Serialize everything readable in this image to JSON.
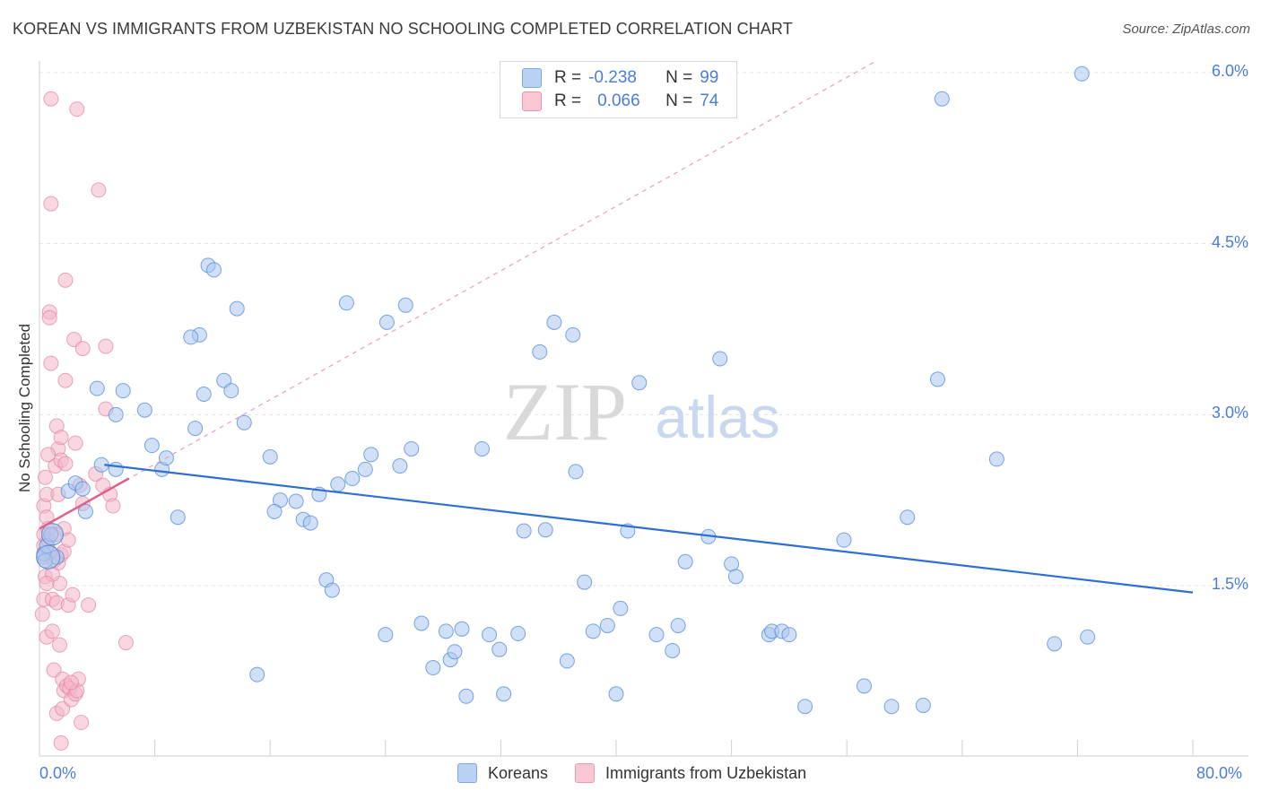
{
  "header": {
    "title": "KOREAN VS IMMIGRANTS FROM UZBEKISTAN NO SCHOOLING COMPLETED CORRELATION CHART",
    "source": "Source: ZipAtlas.com"
  },
  "watermark": {
    "zip": "ZIP",
    "atlas": "atlas"
  },
  "legend": {
    "korean": {
      "r_label": "R =",
      "r_value": "-0.238",
      "n_label": "N =",
      "n_value": "99",
      "color": "#a9c7f0"
    },
    "uzbek": {
      "r_label": "R =",
      "r_value": "0.066",
      "n_label": "N =",
      "n_value": "74",
      "color": "#f4b6c8"
    }
  },
  "bottom_legend": {
    "korean": "Koreans",
    "uzbek": "Immigrants from Uzbekistan"
  },
  "chart_data": {
    "type": "scatter",
    "title": "KOREAN VS IMMIGRANTS FROM UZBEKISTAN NO SCHOOLING COMPLETED CORRELATION CHART",
    "xlabel": "",
    "ylabel": "No Schooling Completed",
    "xlim": [
      0,
      80
    ],
    "ylim": [
      0,
      6.2
    ],
    "x_tick_labels": {
      "min": "0.0%",
      "max": "80.0%"
    },
    "y_ticks": [
      {
        "value": 1.5,
        "label": "1.5%"
      },
      {
        "value": 3.0,
        "label": "3.0%"
      },
      {
        "value": 4.5,
        "label": "4.5%"
      },
      {
        "value": 6.0,
        "label": "6.0%"
      }
    ],
    "series": [
      {
        "name": "Koreans",
        "color": "#5a8fd8",
        "fill": "#a9c7f0",
        "trend": {
          "x": [
            4.5,
            80
          ],
          "y": [
            2.56,
            1.44
          ],
          "color": "#2f6fd0"
        },
        "points": [
          [
            0.3,
            1.78
          ],
          [
            0.5,
            1.85
          ],
          [
            0.8,
            1.95
          ],
          [
            1.2,
            1.75
          ],
          [
            0.4,
            1.72
          ],
          [
            2.0,
            2.33
          ],
          [
            2.5,
            2.4
          ],
          [
            3.2,
            2.15
          ],
          [
            3.0,
            2.35
          ],
          [
            4.3,
            2.56
          ],
          [
            5.3,
            2.52
          ],
          [
            5.8,
            3.21
          ],
          [
            4.0,
            3.23
          ],
          [
            5.3,
            3.0
          ],
          [
            7.3,
            3.04
          ],
          [
            7.8,
            2.73
          ],
          [
            8.5,
            2.52
          ],
          [
            8.8,
            2.62
          ],
          [
            9.6,
            2.1
          ],
          [
            11.1,
            3.7
          ],
          [
            10.5,
            3.68
          ],
          [
            11.4,
            3.18
          ],
          [
            10.8,
            2.88
          ],
          [
            11.7,
            4.31
          ],
          [
            12.1,
            4.27
          ],
          [
            12.8,
            3.3
          ],
          [
            13.3,
            3.21
          ],
          [
            13.7,
            3.93
          ],
          [
            14.2,
            2.93
          ],
          [
            15.1,
            0.72
          ],
          [
            16.7,
            2.25
          ],
          [
            16.0,
            2.63
          ],
          [
            16.3,
            2.15
          ],
          [
            17.8,
            2.24
          ],
          [
            18.3,
            2.08
          ],
          [
            18.8,
            2.05
          ],
          [
            19.4,
            2.3
          ],
          [
            19.9,
            1.55
          ],
          [
            20.3,
            1.46
          ],
          [
            20.7,
            2.39
          ],
          [
            21.3,
            3.98
          ],
          [
            21.7,
            2.44
          ],
          [
            22.6,
            2.52
          ],
          [
            23.0,
            2.65
          ],
          [
            24.0,
            1.07
          ],
          [
            24.1,
            3.81
          ],
          [
            25.0,
            2.55
          ],
          [
            25.4,
            3.96
          ],
          [
            25.8,
            2.7
          ],
          [
            26.5,
            1.17
          ],
          [
            27.3,
            0.78
          ],
          [
            28.2,
            1.1
          ],
          [
            28.5,
            0.85
          ],
          [
            28.8,
            0.92
          ],
          [
            29.3,
            1.12
          ],
          [
            29.6,
            0.53
          ],
          [
            30.7,
            2.7
          ],
          [
            31.2,
            1.07
          ],
          [
            31.9,
            0.94
          ],
          [
            32.2,
            0.55
          ],
          [
            33.2,
            1.08
          ],
          [
            33.6,
            1.98
          ],
          [
            34.7,
            3.55
          ],
          [
            35.1,
            1.99
          ],
          [
            35.7,
            3.81
          ],
          [
            36.6,
            0.84
          ],
          [
            37.0,
            3.7
          ],
          [
            37.2,
            2.5
          ],
          [
            37.8,
            1.53
          ],
          [
            38.4,
            1.1
          ],
          [
            39.4,
            1.15
          ],
          [
            40.0,
            0.55
          ],
          [
            40.3,
            1.3
          ],
          [
            40.8,
            1.98
          ],
          [
            41.6,
            3.28
          ],
          [
            42.8,
            1.07
          ],
          [
            43.9,
            0.93
          ],
          [
            44.3,
            1.15
          ],
          [
            44.8,
            1.71
          ],
          [
            46.4,
            1.93
          ],
          [
            47.2,
            3.49
          ],
          [
            48.0,
            1.69
          ],
          [
            48.3,
            1.58
          ],
          [
            50.6,
            1.07
          ],
          [
            50.8,
            1.1
          ],
          [
            51.5,
            1.1
          ],
          [
            52.0,
            1.07
          ],
          [
            53.1,
            0.44
          ],
          [
            55.8,
            1.9
          ],
          [
            57.2,
            0.62
          ],
          [
            59.1,
            0.44
          ],
          [
            60.2,
            2.1
          ],
          [
            61.3,
            0.45
          ],
          [
            62.3,
            3.31
          ],
          [
            62.6,
            5.77
          ],
          [
            66.4,
            2.61
          ],
          [
            70.4,
            0.99
          ],
          [
            72.3,
            5.99
          ],
          [
            72.7,
            1.05
          ]
        ]
      },
      {
        "name": "Immigrants from Uzbekistan",
        "color": "#e2819f",
        "fill": "#f4b6c8",
        "trend": {
          "x": [
            0,
            6.2
          ],
          "y": [
            2.0,
            2.44
          ],
          "color": "#e0608a"
        },
        "trend_extended": {
          "x": [
            0,
            58
          ],
          "y": [
            2.0,
            6.1
          ],
          "color": "#eaa0b6"
        },
        "points": [
          [
            0.3,
            1.75
          ],
          [
            0.3,
            1.85
          ],
          [
            0.3,
            1.95
          ],
          [
            0.3,
            2.2
          ],
          [
            0.3,
            1.38
          ],
          [
            0.4,
            1.58
          ],
          [
            0.5,
            2.1
          ],
          [
            0.5,
            2.3
          ],
          [
            0.5,
            1.05
          ],
          [
            0.6,
            2.0
          ],
          [
            0.6,
            1.9
          ],
          [
            0.7,
            1.8
          ],
          [
            0.7,
            3.9
          ],
          [
            0.7,
            3.85
          ],
          [
            0.8,
            4.85
          ],
          [
            0.8,
            5.77
          ],
          [
            0.8,
            3.45
          ],
          [
            0.9,
            1.38
          ],
          [
            0.9,
            1.1
          ],
          [
            1.0,
            0.76
          ],
          [
            1.0,
            1.72
          ],
          [
            1.1,
            1.95
          ],
          [
            1.1,
            2.55
          ],
          [
            1.2,
            1.35
          ],
          [
            1.2,
            0.38
          ],
          [
            1.2,
            2.9
          ],
          [
            1.3,
            2.7
          ],
          [
            1.3,
            1.7
          ],
          [
            1.4,
            0.98
          ],
          [
            1.4,
            1.52
          ],
          [
            1.5,
            1.77
          ],
          [
            1.5,
            2.6
          ],
          [
            1.5,
            2.8
          ],
          [
            1.5,
            0.12
          ],
          [
            1.6,
            0.42
          ],
          [
            1.6,
            0.68
          ],
          [
            1.7,
            1.8
          ],
          [
            1.7,
            2.0
          ],
          [
            1.7,
            0.58
          ],
          [
            1.8,
            4.18
          ],
          [
            1.8,
            3.3
          ],
          [
            1.8,
            2.57
          ],
          [
            1.9,
            0.62
          ],
          [
            2.0,
            1.9
          ],
          [
            2.0,
            1.33
          ],
          [
            2.1,
            0.6
          ],
          [
            2.2,
            0.5
          ],
          [
            2.3,
            1.42
          ],
          [
            2.4,
            3.66
          ],
          [
            2.5,
            0.55
          ],
          [
            2.5,
            2.75
          ],
          [
            2.6,
            5.68
          ],
          [
            2.6,
            0.58
          ],
          [
            2.7,
            0.68
          ],
          [
            2.8,
            2.38
          ],
          [
            2.9,
            0.3
          ],
          [
            3.0,
            2.22
          ],
          [
            3.0,
            3.58
          ],
          [
            3.4,
            1.33
          ],
          [
            3.9,
            2.48
          ],
          [
            4.1,
            4.97
          ],
          [
            4.4,
            2.38
          ],
          [
            4.6,
            3.6
          ],
          [
            4.6,
            3.05
          ],
          [
            4.9,
            2.3
          ],
          [
            5.1,
            2.2
          ],
          [
            6.0,
            1.0
          ],
          [
            0.4,
            2.45
          ],
          [
            0.6,
            2.65
          ],
          [
            0.9,
            1.6
          ],
          [
            1.3,
            2.3
          ],
          [
            2.2,
            0.65
          ],
          [
            0.2,
            1.25
          ],
          [
            0.5,
            1.52
          ]
        ]
      }
    ]
  }
}
